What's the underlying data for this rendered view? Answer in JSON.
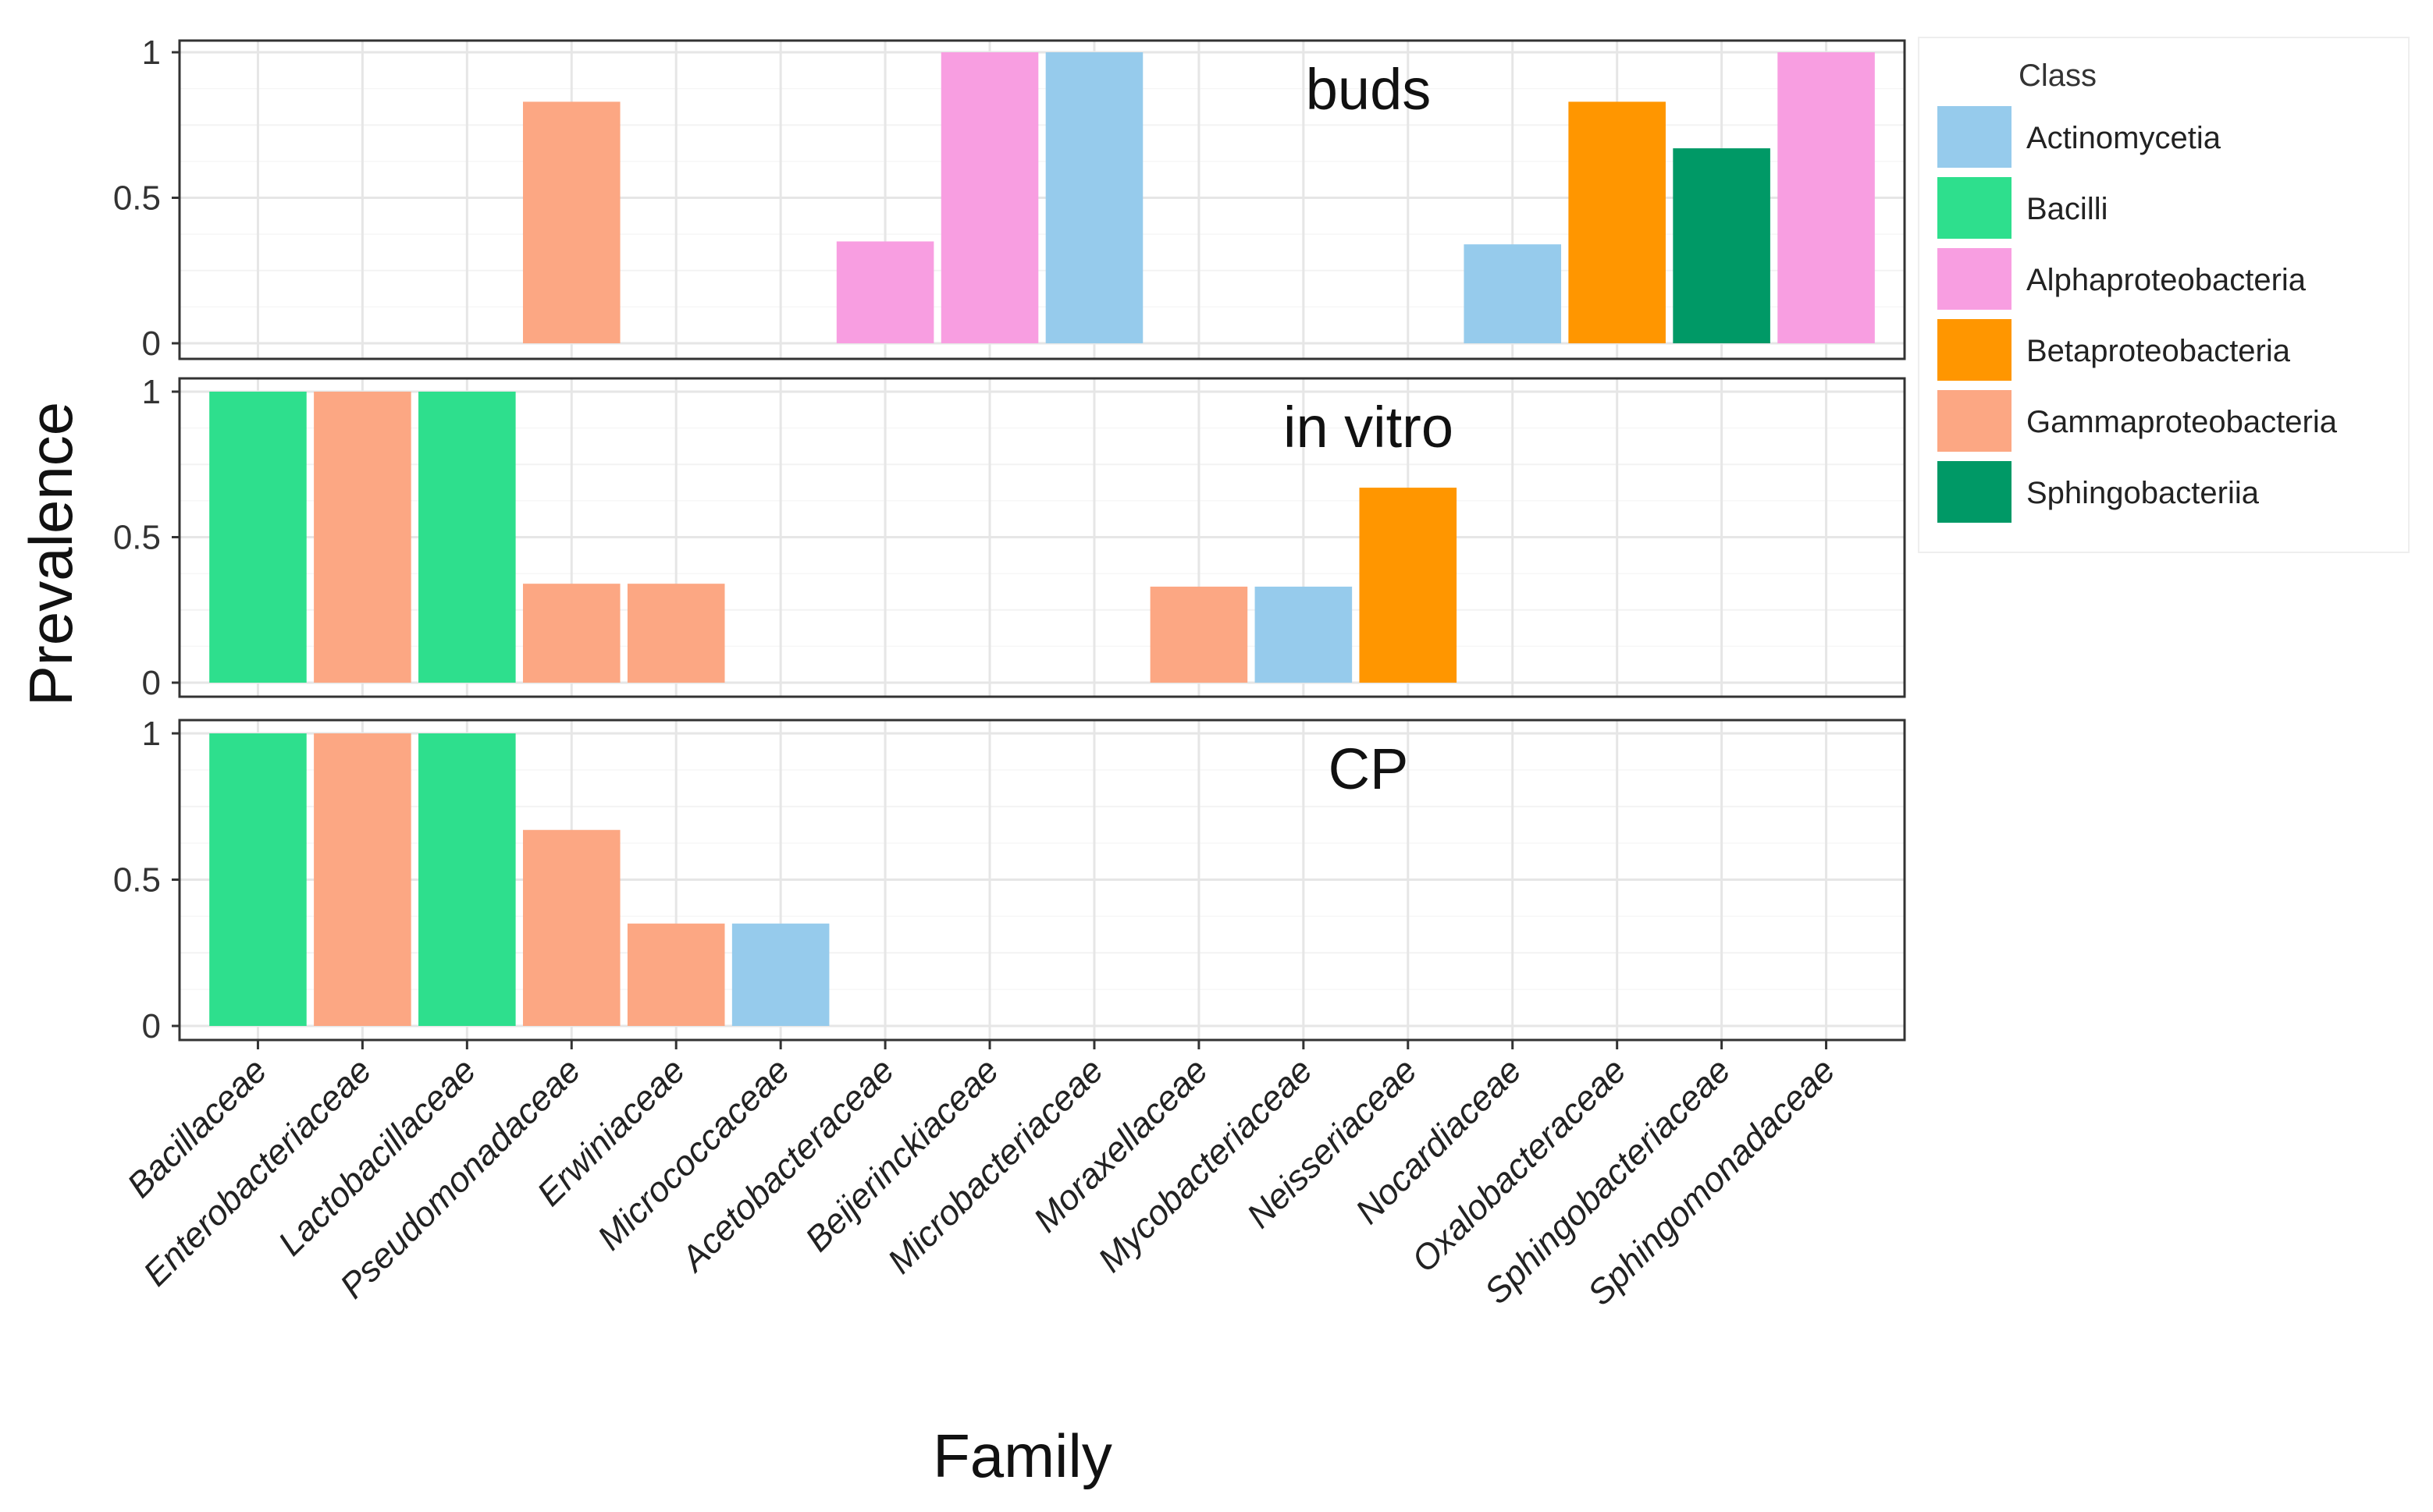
{
  "chart_data": {
    "type": "bar",
    "xlabel": "Family",
    "ylabel": "Prevalence",
    "ylim": [
      0,
      1
    ],
    "yticks": [
      0,
      0.5,
      1
    ],
    "ytick_labels": [
      "0",
      "0.5",
      "1"
    ],
    "grid": true,
    "legend_placement": "top-right",
    "categories": [
      "Bacillaceae",
      "Enterobacteriaceae",
      "Lactobacillaceae",
      "Pseudomonadaceae",
      "Erwiniaceae",
      "Micrococcaceae",
      "Acetobacteraceae",
      "Beijerinckiaceae",
      "Microbacteriaceae",
      "Moraxellaceae",
      "Mycobacteriaceae",
      "Neisseriaceae",
      "Nocardiaceae",
      "Oxalobacteraceae",
      "Sphingobacteriaceae",
      "Sphingomonadaceae"
    ],
    "category_class": [
      "Bacilli",
      "Gammaproteobacteria",
      "Bacilli",
      "Gammaproteobacteria",
      "Gammaproteobacteria",
      "Actinomycetia",
      "Alphaproteobacteria",
      "Alphaproteobacteria",
      "Actinomycetia",
      "Gammaproteobacteria",
      "Actinomycetia",
      "Betaproteobacteria",
      "Actinomycetia",
      "Betaproteobacteria",
      "Sphingobacteriia",
      "Alphaproteobacteria"
    ],
    "legend": {
      "title": "Class",
      "items": [
        {
          "name": "Actinomycetia",
          "color": "#96CBEC"
        },
        {
          "name": "Bacilli",
          "color": "#2EDF8D"
        },
        {
          "name": "Alphaproteobacteria",
          "color": "#F89EE1"
        },
        {
          "name": "Betaproteobacteria",
          "color": "#FF9600"
        },
        {
          "name": "Gammaproteobacteria",
          "color": "#FCA783"
        },
        {
          "name": "Sphingobacteriia",
          "color": "#009966"
        }
      ]
    },
    "facets": [
      {
        "label": "buds",
        "values": [
          0,
          0,
          0,
          0.83,
          0,
          0,
          0.35,
          1,
          1,
          0,
          0,
          0,
          0.34,
          0.83,
          0.67,
          1
        ]
      },
      {
        "label": "in vitro",
        "values": [
          1,
          1,
          1,
          0.34,
          0.34,
          0,
          0,
          0,
          0,
          0.33,
          0.33,
          0.67,
          0,
          0,
          0,
          0
        ]
      },
      {
        "label": "CP",
        "values": [
          1,
          1,
          1,
          0.67,
          0.35,
          0.35,
          0,
          0,
          0,
          0,
          0,
          0,
          0,
          0,
          0,
          0
        ]
      }
    ]
  }
}
